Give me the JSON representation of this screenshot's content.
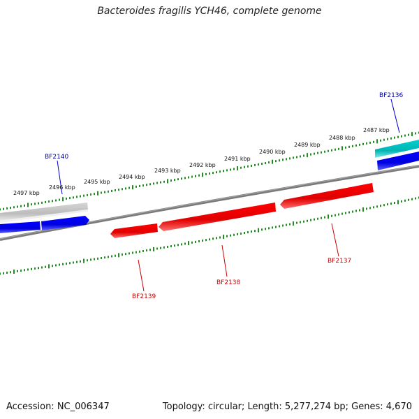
{
  "title": "Bacteroides fragilis YCH46, complete genome",
  "footer": {
    "accession": "Accession: NC_006347",
    "summary": "Topology: circular; Length: 5,277,274 bp; Genes: 4,670"
  },
  "colors": {
    "background": "#ffffff",
    "backbone": "#808080",
    "ticks": "#228B22",
    "forward_gene": "#0000ee",
    "reverse_gene": "#ee0000",
    "rna_gene": "#00c0c0",
    "other_gene": "#c0c0c0",
    "forward_label": "#0000aa",
    "reverse_label": "#cc0000"
  },
  "scale_labels": [
    {
      "text": "2497 kbp"
    },
    {
      "text": "2496 kbp"
    },
    {
      "text": "2495 kbp"
    },
    {
      "text": "2494 kbp"
    },
    {
      "text": "2493 kbp"
    },
    {
      "text": "2492 kbp"
    },
    {
      "text": "2491 kbp"
    },
    {
      "text": "2490 kbp"
    },
    {
      "text": "2489 kbp"
    },
    {
      "text": "2488 kbp"
    },
    {
      "text": "2487 kbp"
    }
  ],
  "genes": [
    {
      "name": "BF2140",
      "strand": "forward"
    },
    {
      "name": "BF2136",
      "strand": "forward"
    },
    {
      "name": "BF2139",
      "strand": "reverse"
    },
    {
      "name": "BF2138",
      "strand": "reverse"
    },
    {
      "name": "BF2137",
      "strand": "reverse"
    }
  ]
}
